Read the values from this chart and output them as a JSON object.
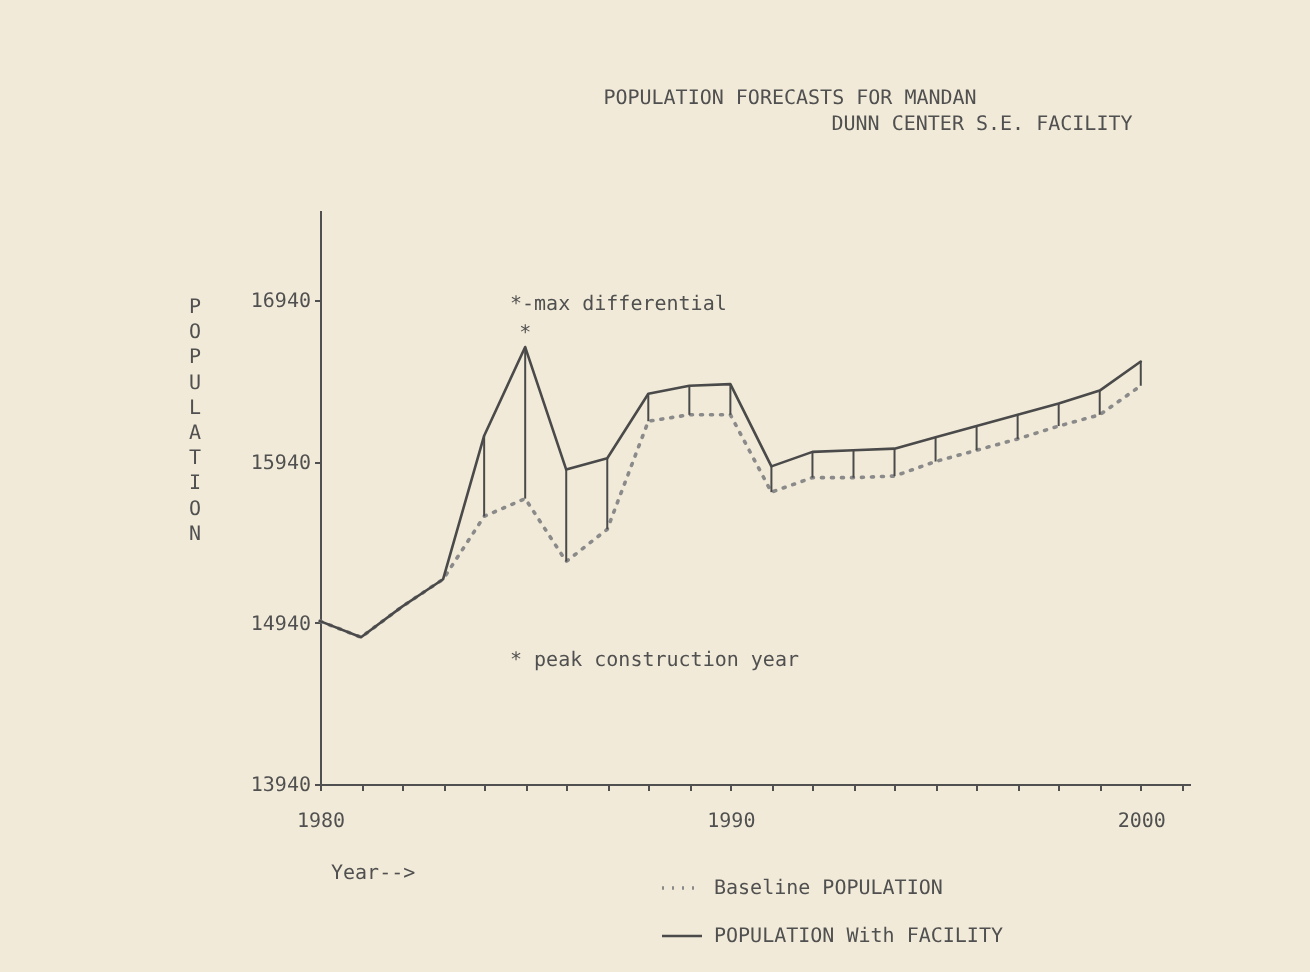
{
  "chart_data": {
    "type": "line",
    "title": "POPULATION FORECASTS FOR MANDAN",
    "subtitle": "DUNN CENTER S.E. FACILITY",
    "xlabel": "Year-->",
    "ylabel": "POPULATION",
    "x": [
      1980,
      1981,
      1982,
      1983,
      1984,
      1985,
      1986,
      1987,
      1988,
      1989,
      1990,
      1991,
      1992,
      1993,
      1994,
      1995,
      1996,
      1997,
      1998,
      1999,
      2000
    ],
    "series": [
      {
        "name": "Baseline POPULATION",
        "color": "#8a8a8a",
        "line_style": "dotted",
        "values": [
          14950,
          14850,
          15040,
          15210,
          15600,
          15710,
          15320,
          15520,
          16190,
          16230,
          16230,
          15750,
          15840,
          15840,
          15850,
          15940,
          16010,
          16080,
          16160,
          16230,
          16410
        ]
      },
      {
        "name": "POPULATION With FACILITY",
        "color": "#4a4a4a",
        "line_style": "solid",
        "values": [
          14950,
          14850,
          15040,
          15210,
          16100,
          16650,
          15890,
          15960,
          16360,
          16410,
          16420,
          15910,
          16000,
          16010,
          16020,
          16090,
          16160,
          16230,
          16300,
          16380,
          16560
        ],
        "errors": [
          null,
          null,
          null,
          null,
          [
            15600,
            16100
          ],
          [
            15710,
            16650
          ],
          [
            15320,
            15890
          ],
          [
            15520,
            15960
          ],
          [
            16190,
            16360
          ],
          [
            16230,
            16410
          ],
          [
            16230,
            16420
          ],
          [
            15750,
            15910
          ],
          [
            15840,
            16000
          ],
          [
            15840,
            16010
          ],
          [
            15850,
            16020
          ],
          [
            15940,
            16090
          ],
          [
            16010,
            16160
          ],
          [
            16080,
            16230
          ],
          [
            16160,
            16300
          ],
          [
            16230,
            16380
          ],
          [
            16410,
            16560
          ]
        ]
      }
    ],
    "xlim": [
      1980,
      2001.2
    ],
    "xticks": [
      1980,
      {
        "value": 1981,
        "label": null
      },
      {
        "value": 1982,
        "label": null
      },
      {
        "value": 1983,
        "label": null
      },
      {
        "value": 1984,
        "label": null
      },
      {
        "value": 1985,
        "label": null
      },
      {
        "value": 1986,
        "label": null
      },
      {
        "value": 1987,
        "label": null
      },
      {
        "value": 1988,
        "label": null
      },
      {
        "value": 1989,
        "label": null
      },
      1990,
      {
        "value": 1991,
        "label": null
      },
      {
        "value": 1992,
        "label": null
      },
      {
        "value": 1993,
        "label": null
      },
      {
        "value": 1994,
        "label": null
      },
      {
        "value": 1995,
        "label": null
      },
      {
        "value": 1996,
        "label": null
      },
      {
        "value": 1997,
        "label": null
      },
      {
        "value": 1998,
        "label": null
      },
      {
        "value": 1999,
        "label": null
      },
      2000,
      {
        "value": 2001,
        "label": null
      }
    ],
    "ylim": [
      13940,
      17500
    ],
    "yticks": [
      13940,
      14940,
      15940,
      16940
    ],
    "annotations": [
      "*-max differential",
      "* peak construction year",
      {
        "text": "*",
        "x": 1985,
        "y": 16650
      }
    ],
    "legend": "bottom",
    "grid": false
  }
}
